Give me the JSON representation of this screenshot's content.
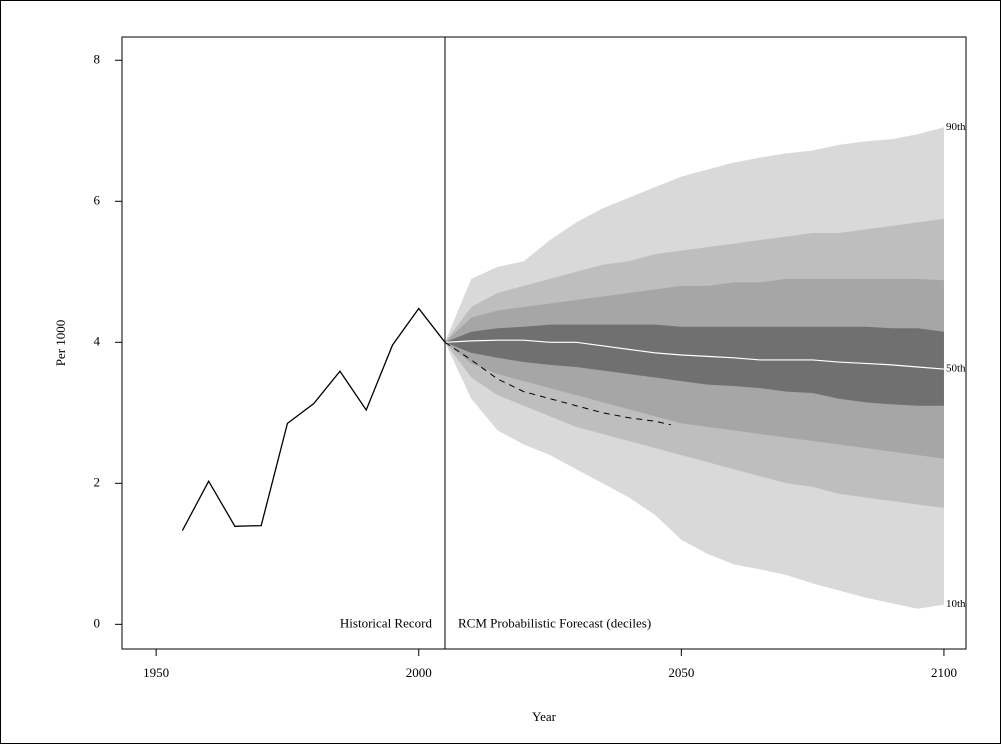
{
  "chart_data": {
    "type": "fan",
    "x_label": "Year",
    "y_label": "Per 1000",
    "xlim": [
      1943.5,
      2104.2
    ],
    "ylim": [
      -0.35,
      8.33
    ],
    "xticks": [
      1950,
      2000,
      2050,
      2100
    ],
    "yticks": [
      0,
      2,
      4,
      6,
      8
    ],
    "divider_x": 2005,
    "annotations": [
      "Historical Record",
      "RCM Probabilistic Forecast (deciles)"
    ],
    "historical": {
      "color": "#000000",
      "x": [
        1955,
        1960,
        1965,
        1970,
        1975,
        1980,
        1985,
        1990,
        1995,
        2000,
        2005
      ],
      "values": [
        1.33,
        2.03,
        1.39,
        1.4,
        2.85,
        3.13,
        3.59,
        3.04,
        3.96,
        4.48,
        4.0
      ]
    },
    "comparison": {
      "color": "#000000",
      "x": [
        2005,
        2010,
        2015,
        2020,
        2025,
        2030,
        2035,
        2040,
        2045,
        2048
      ],
      "values": [
        4.0,
        3.75,
        3.48,
        3.3,
        3.2,
        3.1,
        3.0,
        2.93,
        2.88,
        2.83
      ]
    },
    "forecast": {
      "band_colors": [
        "#d9d9d9",
        "#bebebe",
        "#a6a6a6",
        "#707070"
      ],
      "median_color": "#ffffff",
      "x": [
        2005,
        2010,
        2015,
        2020,
        2025,
        2030,
        2035,
        2040,
        2045,
        2050,
        2055,
        2060,
        2065,
        2070,
        2075,
        2080,
        2085,
        2090,
        2095,
        2100
      ],
      "quantiles": [
        {
          "label": "10th",
          "values": [
            4.0,
            3.2,
            2.75,
            2.55,
            2.4,
            2.2,
            2.0,
            1.8,
            1.55,
            1.2,
            1.0,
            0.85,
            0.78,
            0.7,
            0.58,
            0.48,
            0.38,
            0.3,
            0.22,
            0.28
          ]
        },
        {
          "values": [
            4.0,
            3.5,
            3.25,
            3.1,
            2.95,
            2.8,
            2.7,
            2.6,
            2.5,
            2.4,
            2.3,
            2.2,
            2.1,
            2.0,
            1.95,
            1.85,
            1.8,
            1.75,
            1.7,
            1.65
          ]
        },
        {
          "values": [
            4.0,
            3.7,
            3.55,
            3.45,
            3.35,
            3.25,
            3.15,
            3.05,
            2.95,
            2.85,
            2.8,
            2.75,
            2.7,
            2.65,
            2.6,
            2.55,
            2.5,
            2.45,
            2.4,
            2.35
          ]
        },
        {
          "values": [
            4.0,
            3.85,
            3.78,
            3.72,
            3.68,
            3.65,
            3.6,
            3.55,
            3.5,
            3.45,
            3.4,
            3.38,
            3.35,
            3.3,
            3.28,
            3.2,
            3.15,
            3.12,
            3.1,
            3.1
          ]
        },
        {
          "label": "50th",
          "values": [
            4.0,
            4.02,
            4.03,
            4.03,
            4.0,
            4.0,
            3.95,
            3.9,
            3.85,
            3.82,
            3.8,
            3.78,
            3.75,
            3.75,
            3.75,
            3.72,
            3.7,
            3.68,
            3.65,
            3.62
          ]
        },
        {
          "values": [
            4.0,
            4.15,
            4.2,
            4.22,
            4.25,
            4.25,
            4.25,
            4.25,
            4.25,
            4.22,
            4.22,
            4.22,
            4.22,
            4.22,
            4.22,
            4.22,
            4.22,
            4.2,
            4.2,
            4.15
          ]
        },
        {
          "values": [
            4.0,
            4.35,
            4.45,
            4.5,
            4.55,
            4.6,
            4.65,
            4.7,
            4.75,
            4.8,
            4.8,
            4.85,
            4.85,
            4.9,
            4.9,
            4.9,
            4.9,
            4.9,
            4.9,
            4.88
          ]
        },
        {
          "values": [
            4.0,
            4.5,
            4.7,
            4.8,
            4.9,
            5.0,
            5.1,
            5.15,
            5.25,
            5.3,
            5.35,
            5.4,
            5.45,
            5.5,
            5.55,
            5.55,
            5.6,
            5.65,
            5.7,
            5.75
          ]
        },
        {
          "label": "90th",
          "values": [
            4.0,
            4.9,
            5.07,
            5.15,
            5.45,
            5.7,
            5.9,
            6.05,
            6.2,
            6.35,
            6.45,
            6.55,
            6.62,
            6.68,
            6.72,
            6.8,
            6.85,
            6.88,
            6.95,
            7.05
          ]
        }
      ]
    }
  }
}
